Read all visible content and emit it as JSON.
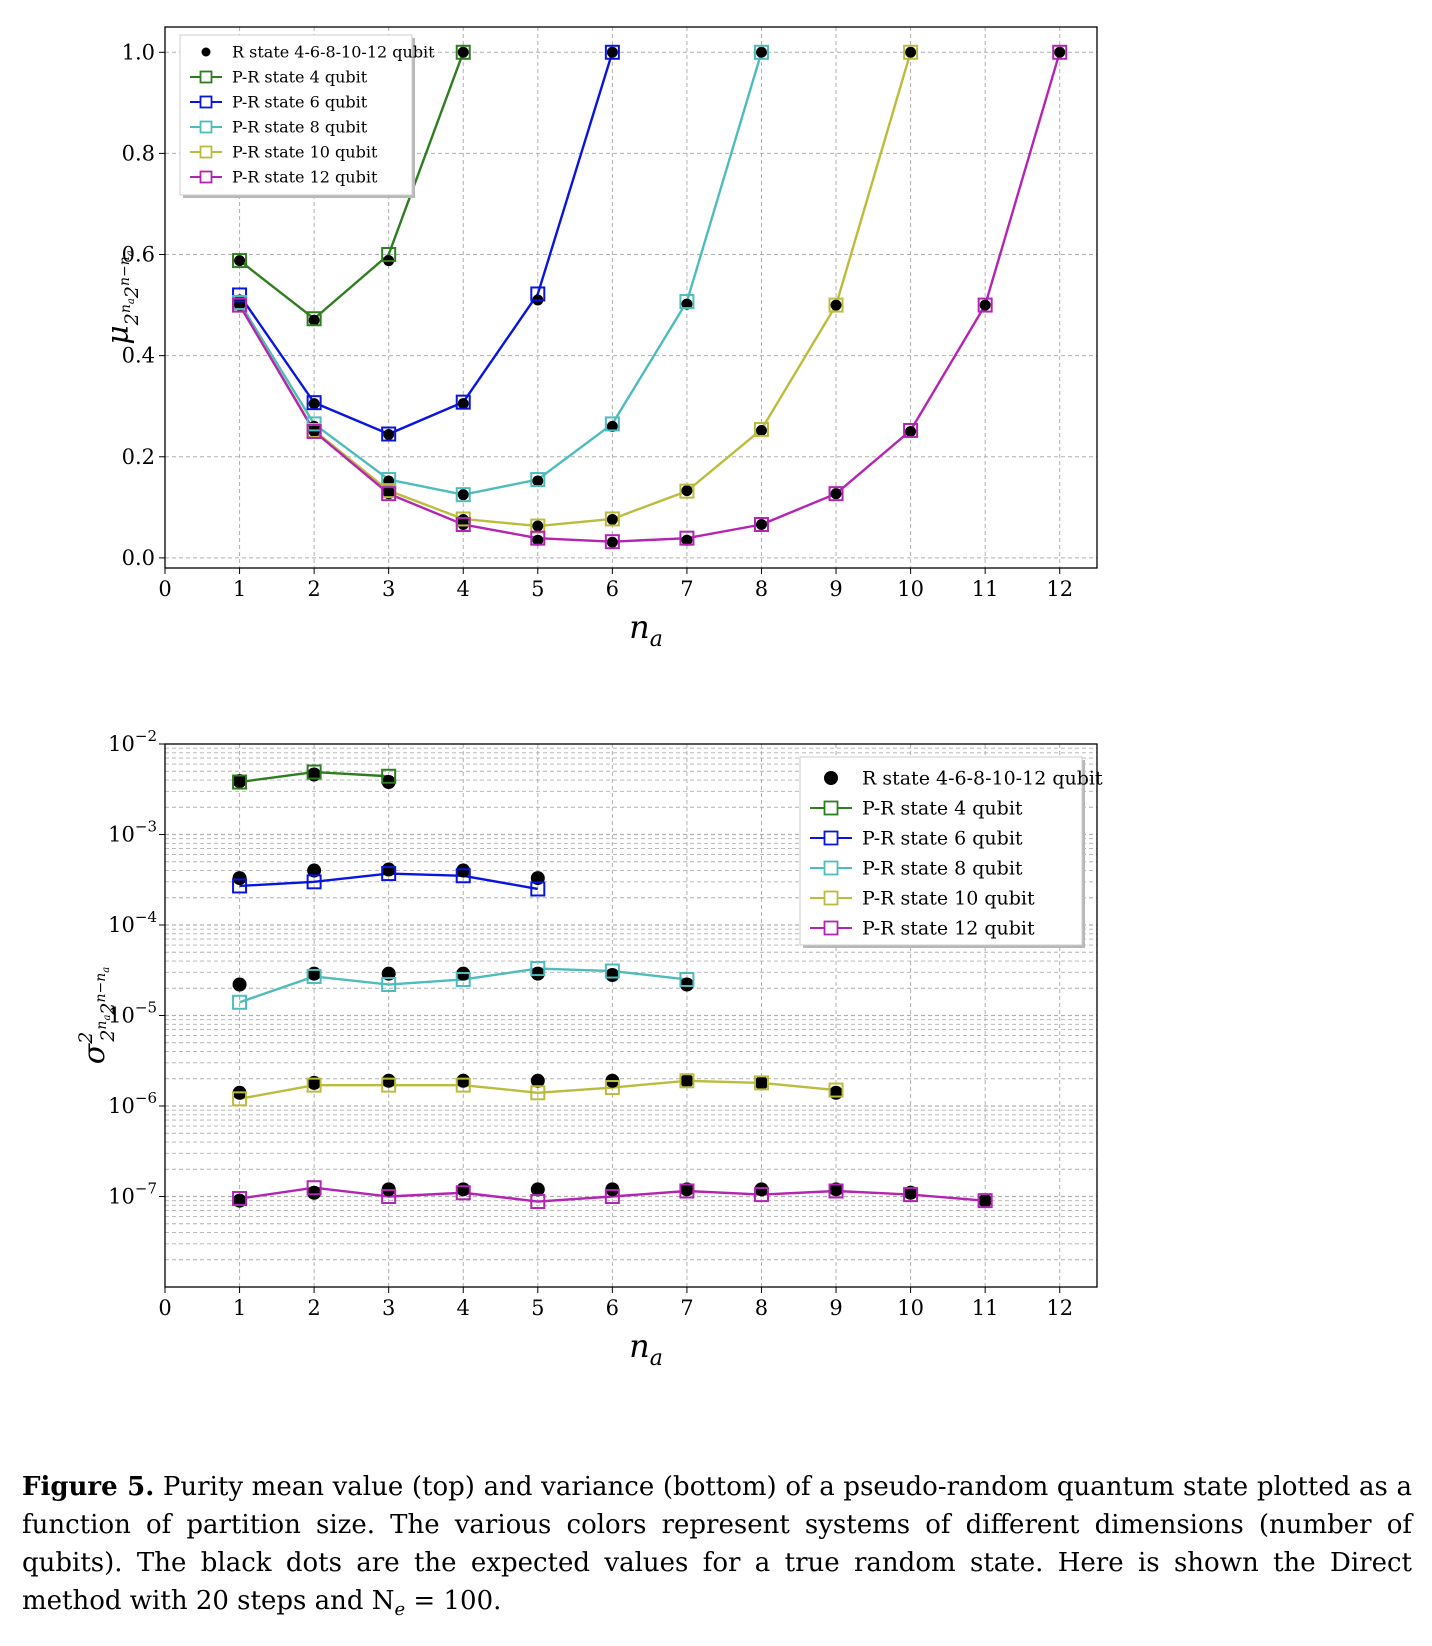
{
  "caption": {
    "label": "Figure 5.",
    "text": " Purity mean value (top) and variance (bottom) of a pseudo-random quantum state plotted as a function of partition size.  The various colors represent systems of different dimensions (number of qubits). The black dots are the expected values for a true random state. Here is shown the Direct method with 20 steps and N",
    "sub": "e",
    "tail": " = 100."
  },
  "colors": {
    "R": "#000000",
    "P4": "#2e7d1e",
    "P6": "#0a14e0",
    "P8": "#4cbcbc",
    "P10": "#bcbc3c",
    "P12": "#b424b4"
  },
  "chart_data": [
    {
      "type": "line",
      "panel": "top",
      "xlabel": "n_a",
      "ylabel": "μ_{2^{n_a}2^{n-n_a}}",
      "xlim": [
        0,
        12.5
      ],
      "ylim": [
        -0.02,
        1.05
      ],
      "xticks": [
        "0",
        "1",
        "2",
        "3",
        "4",
        "5",
        "6",
        "7",
        "8",
        "9",
        "10",
        "11",
        "12"
      ],
      "yticks": [
        "0.0",
        "0.2",
        "0.4",
        "0.6",
        "0.8",
        "1.0"
      ],
      "grid": true,
      "legend_position": "upper-left",
      "series": [
        {
          "name": "R state 4-6-8-10-12 qubit",
          "color_key": "R",
          "marker": "dot",
          "x": [
            1,
            2,
            3,
            4,
            1,
            2,
            3,
            4,
            5,
            6,
            1,
            2,
            3,
            4,
            5,
            6,
            7,
            8,
            1,
            2,
            3,
            4,
            5,
            6,
            7,
            8,
            9,
            10,
            1,
            2,
            3,
            4,
            5,
            6,
            7,
            8,
            9,
            10,
            11,
            12
          ],
          "y": [
            0.588,
            0.47,
            0.588,
            1.0,
            0.51,
            0.305,
            0.244,
            0.305,
            0.51,
            1.0,
            0.502,
            0.26,
            0.152,
            0.125,
            0.152,
            0.26,
            0.502,
            1.0,
            0.5,
            0.252,
            0.133,
            0.076,
            0.063,
            0.076,
            0.133,
            0.252,
            0.5,
            1.0,
            0.5,
            0.25,
            0.127,
            0.066,
            0.035,
            0.031,
            0.035,
            0.066,
            0.127,
            0.25,
            0.5,
            1.0
          ]
        },
        {
          "name": "P-R state 4 qubit",
          "color_key": "P4",
          "marker": "square",
          "x": [
            1,
            2,
            3,
            4
          ],
          "y": [
            0.588,
            0.473,
            0.6,
            1.0
          ]
        },
        {
          "name": "P-R state 6 qubit",
          "color_key": "P6",
          "marker": "square",
          "x": [
            1,
            2,
            3,
            4,
            5,
            6
          ],
          "y": [
            0.52,
            0.307,
            0.245,
            0.308,
            0.522,
            1.0
          ]
        },
        {
          "name": "P-R state 8 qubit",
          "color_key": "P8",
          "marker": "square",
          "x": [
            1,
            2,
            3,
            4,
            5,
            6,
            7,
            8
          ],
          "y": [
            0.505,
            0.265,
            0.155,
            0.125,
            0.155,
            0.265,
            0.507,
            1.0
          ]
        },
        {
          "name": "P-R state 10 qubit",
          "color_key": "P10",
          "marker": "square",
          "x": [
            1,
            2,
            3,
            4,
            5,
            6,
            7,
            8,
            9,
            10
          ],
          "y": [
            0.5,
            0.252,
            0.133,
            0.077,
            0.063,
            0.077,
            0.132,
            0.254,
            0.5,
            1.0
          ]
        },
        {
          "name": "P-R state 12 qubit",
          "color_key": "P12",
          "marker": "square",
          "x": [
            1,
            2,
            3,
            4,
            5,
            6,
            7,
            8,
            9,
            10,
            11,
            12
          ],
          "y": [
            0.5,
            0.25,
            0.127,
            0.066,
            0.039,
            0.032,
            0.039,
            0.066,
            0.127,
            0.252,
            0.5,
            1.0
          ]
        }
      ]
    },
    {
      "type": "line",
      "panel": "bottom",
      "yscale": "log",
      "xlabel": "n_a",
      "ylabel": "σ²_{2^{n_a}2^{n-n_a}}",
      "xlim": [
        0,
        12.5
      ],
      "ylim": [
        1e-08,
        0.01
      ],
      "xticks": [
        "0",
        "1",
        "2",
        "3",
        "4",
        "5",
        "6",
        "7",
        "8",
        "9",
        "10",
        "11",
        "12"
      ],
      "yticks": [
        "10^-2",
        "10^-3",
        "10^-4",
        "10^-5",
        "10^-6",
        "10^-7"
      ],
      "grid": true,
      "legend_position": "upper-right",
      "series": [
        {
          "name": "R state 4-6-8-10-12 qubit",
          "color_key": "R",
          "marker": "dot",
          "x": [
            1,
            2,
            3,
            1,
            2,
            3,
            4,
            5,
            1,
            2,
            3,
            4,
            5,
            6,
            7,
            1,
            2,
            3,
            4,
            5,
            6,
            7,
            8,
            9,
            1,
            2,
            3,
            4,
            5,
            6,
            7,
            8,
            9,
            10,
            11
          ],
          "y": [
            0.0039,
            0.0046,
            0.0038,
            0.00033,
            0.0004,
            0.00041,
            0.0004,
            0.00033,
            2.2e-05,
            2.9e-05,
            2.9e-05,
            2.9e-05,
            2.9e-05,
            2.8e-05,
            2.2e-05,
            1.4e-06,
            1.8e-06,
            1.9e-06,
            1.9e-06,
            1.9e-06,
            1.9e-06,
            1.9e-06,
            1.8e-06,
            1.4e-06,
            9e-08,
            1.1e-07,
            1.2e-07,
            1.2e-07,
            1.2e-07,
            1.2e-07,
            1.2e-07,
            1.2e-07,
            1.2e-07,
            1.1e-07,
            9e-08
          ]
        },
        {
          "name": "P-R state 4 qubit",
          "color_key": "P4",
          "marker": "square",
          "x": [
            1,
            2,
            3
          ],
          "y": [
            0.0038,
            0.0049,
            0.0044
          ]
        },
        {
          "name": "P-R state 6 qubit",
          "color_key": "P6",
          "marker": "square",
          "x": [
            1,
            2,
            3,
            4,
            5
          ],
          "y": [
            0.00027,
            0.0003,
            0.00037,
            0.00035,
            0.00025
          ]
        },
        {
          "name": "P-R state 8 qubit",
          "color_key": "P8",
          "marker": "square",
          "x": [
            1,
            2,
            3,
            4,
            5,
            6,
            7
          ],
          "y": [
            1.4e-05,
            2.7e-05,
            2.2e-05,
            2.5e-05,
            3.3e-05,
            3.1e-05,
            2.5e-05
          ]
        },
        {
          "name": "P-R state 10 qubit",
          "color_key": "P10",
          "marker": "square",
          "x": [
            1,
            2,
            3,
            4,
            5,
            6,
            7,
            8,
            9
          ],
          "y": [
            1.2e-06,
            1.7e-06,
            1.7e-06,
            1.7e-06,
            1.4e-06,
            1.6e-06,
            1.9e-06,
            1.8e-06,
            1.5e-06
          ]
        },
        {
          "name": "P-R state 12 qubit",
          "color_key": "P12",
          "marker": "square",
          "x": [
            1,
            2,
            3,
            4,
            5,
            6,
            7,
            8,
            9,
            10,
            11
          ],
          "y": [
            9.5e-08,
            1.25e-07,
            1e-07,
            1.1e-07,
            8.8e-08,
            1e-07,
            1.15e-07,
            1.05e-07,
            1.15e-07,
            1.05e-07,
            9e-08
          ]
        }
      ]
    }
  ]
}
